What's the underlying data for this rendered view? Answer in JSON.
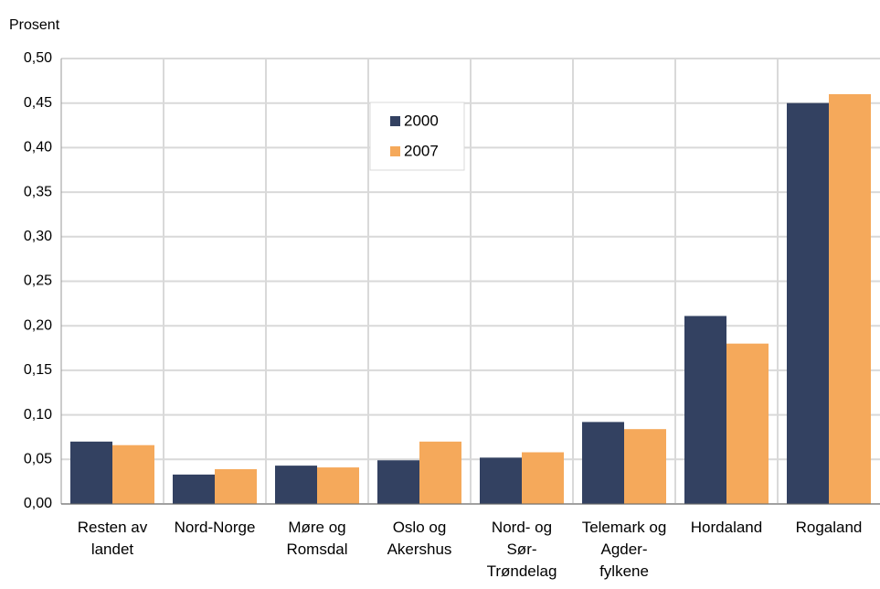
{
  "chart_data": {
    "type": "bar",
    "y_label": "Prosent",
    "categories": [
      "Resten av landet",
      "Nord-Norge",
      "Møre og Romsdal",
      "Oslo og Akershus",
      "Nord- og Sør-Trøndelag",
      "Telemark og Agder-fylkene",
      "Hordaland",
      "Rogaland"
    ],
    "series": [
      {
        "name": "2000",
        "color": "#334161",
        "values": [
          0.07,
          0.033,
          0.043,
          0.049,
          0.052,
          0.092,
          0.211,
          0.45
        ]
      },
      {
        "name": "2007",
        "color": "#f5a95b",
        "values": [
          0.066,
          0.039,
          0.041,
          0.07,
          0.058,
          0.084,
          0.18,
          0.46
        ]
      }
    ],
    "ylim": [
      0,
      0.5
    ],
    "yticks": [
      {
        "value": 0,
        "label": "0,00"
      },
      {
        "value": 0.05,
        "label": "0,05"
      },
      {
        "value": 0.1,
        "label": "0,10"
      },
      {
        "value": 0.15,
        "label": "0,15"
      },
      {
        "value": 0.2,
        "label": "0,20"
      },
      {
        "value": 0.25,
        "label": "0,25"
      },
      {
        "value": 0.3,
        "label": "0,30"
      },
      {
        "value": 0.35,
        "label": "0,35"
      },
      {
        "value": 0.4,
        "label": "0,40"
      },
      {
        "value": 0.45,
        "label": "0,45"
      },
      {
        "value": 0.5,
        "label": "0,50"
      }
    ],
    "grid": true,
    "legend": "top-center"
  }
}
